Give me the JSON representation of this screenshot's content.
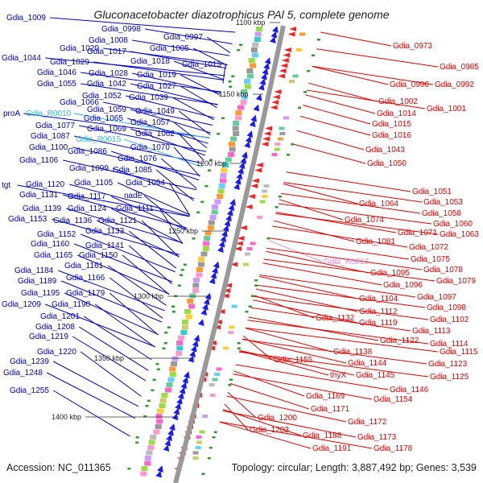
{
  "title": "Gluconacetobacter diazotrophicus PAl 5, complete genome",
  "footer": {
    "accession": "Accession: NC_011365",
    "stats": "Topology: circular; Length: 3,887,492 bp; Genes: 3,539"
  },
  "colors": {
    "forward_label": "#0000cc",
    "reverse_label": "#e60000",
    "rna_forward_label": "#33bbdd",
    "rna_reverse_label": "#ee88cc",
    "backbone": "#999999",
    "forward_arrow": "#1a1aff",
    "reverse_arrow": "#ff2020",
    "marker_green": "#2a9d2a"
  },
  "ticks": [
    "1100 kbp",
    "1150 kbp",
    "1200 kbp",
    "1250 kbp",
    "1300 kbp",
    "1350 kbp",
    "1400 kbp"
  ],
  "left_labels": [
    "Gdia_1009",
    "Gdia_0998",
    "Gdia_1008",
    "Gdia_0997",
    "Gdia_1020",
    "Gdia_1017",
    "Gdia_1005",
    "Gdia_1044",
    "Gdia_1029",
    "Gdia_1018",
    "Gdia_1013",
    "Gdia_1046",
    "Gdia_1028",
    "Gdia_1019",
    "Gdia_1055",
    "Gdia_1042",
    "Gdia_1027",
    "Gdia_1052",
    "Gdia_1039",
    "Gdia_1066",
    "Gdia_1059",
    "Gdia_1049",
    "proA",
    "Gdia_R0010",
    "Gdia_1065",
    "Gdia_1057",
    "Gdia_1077",
    "Gdia_1069",
    "Gdia_1062",
    "Gdia_1087",
    "Gdia_R0015",
    "Gdia_1100",
    "Gdia_1086",
    "Gdia_1070",
    "Gdia_1106",
    "Gdia_1076",
    "Gdia_1099",
    "Gdia_1085",
    "tgt",
    "Gdia_1120",
    "Gdia_1105",
    "Gdia_1094",
    "Gdia_1131",
    "Gdia_1117",
    "nadE",
    "Gdia_1139",
    "Gdia_1124",
    "Gdia_1111",
    "Gdia_1153",
    "Gdia_1136",
    "Gdia_1121",
    "Gdia_1133",
    "Gdia_1152",
    "Gdia_1160",
    "Gdia_1141",
    "Gdia_1165",
    "Gdia_1150",
    "Gdia_1161",
    "Gdia_1184",
    "Gdia_1166",
    "Gdia_1189",
    "Gdia_1195",
    "Gdia_1179",
    "Gdia_1209",
    "Gdia_1190",
    "Gdia_1201",
    "Gdia_1208",
    "Gdia_1219",
    "Gdia_1220",
    "Gdia_1239",
    "Gdia_1248",
    "Gdia_1255"
  ],
  "right_labels": [
    "Gdia_0973",
    "Gdia_0985",
    "Gdia_0996",
    "Gdia_0992",
    "Gdia_1002",
    "Gdia_1001",
    "Gdia_1014",
    "Gdia_1015",
    "Gdia_1016",
    "Gdia_1043",
    "Gdia_1050",
    "Gdia_1051",
    "Gdia_1053",
    "Gdia_1064",
    "Gdia_1058",
    "Gdia_1060",
    "Gdia_1074",
    "Gdia_1071",
    "Gdia_1063",
    "Gdia_1081",
    "Gdia_1072",
    "Gdia_R0016",
    "Gdia_1075",
    "Gdia_1078",
    "Gdia_1095",
    "Gdia_1079",
    "Gdia_1096",
    "Gdia_1097",
    "Gdia_1104",
    "Gdia_1098",
    "Gdia_1112",
    "Gdia_1132",
    "Gdia_1119",
    "Gdia_1102",
    "Gdia_1113",
    "Gdia_1122",
    "Gdia_1114",
    "Gdia_1138",
    "Gdia_1115",
    "Gdia_1155",
    "Gdia_1144",
    "Gdia_1123",
    "thyX",
    "Gdia_1145",
    "Gdia_1125",
    "Gdia_1146",
    "Gdia_1169",
    "Gdia_1154",
    "Gdia_1171",
    "Gdia_1200",
    "Gdia_1172",
    "Gdia_1203",
    "Gdia_1188",
    "Gdia_1173",
    "Gdia_1191",
    "Gdia_1178"
  ]
}
